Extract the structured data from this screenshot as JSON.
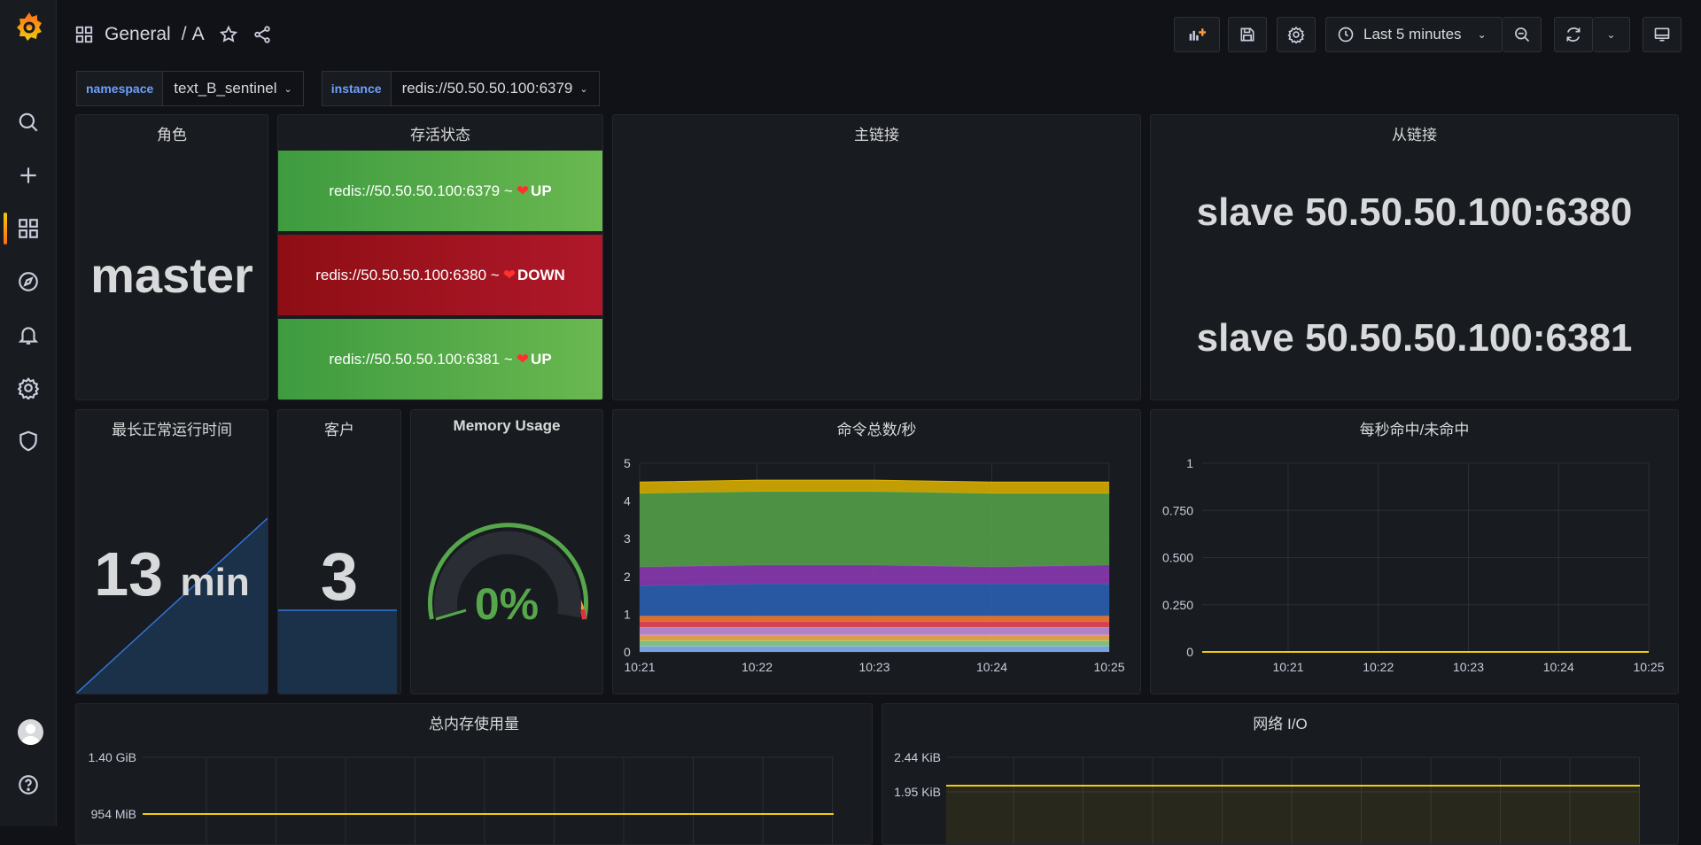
{
  "header": {
    "folder": "General",
    "separator": "/",
    "dashboard": "A",
    "time_range": "Last 5 minutes"
  },
  "variables": [
    {
      "label": "namespace",
      "value": "text_B_sentinel"
    },
    {
      "label": "instance",
      "value": "redis://50.50.50.100:6379"
    }
  ],
  "panels": {
    "role": {
      "title": "角色",
      "value": "master"
    },
    "alive": {
      "title": "存活状态",
      "items": [
        {
          "addr": "redis://50.50.50.100:6379 ~",
          "status": "UP",
          "state": "up"
        },
        {
          "addr": "redis://50.50.50.100:6380 ~",
          "status": "DOWN",
          "state": "down"
        },
        {
          "addr": "redis://50.50.50.100:6381 ~",
          "status": "UP",
          "state": "up"
        }
      ]
    },
    "master_links": {
      "title": "主链接"
    },
    "slave_links": {
      "title": "从链接",
      "items": [
        "slave 50.50.50.100:6380",
        "slave 50.50.50.100:6381"
      ]
    },
    "uptime": {
      "title": "最长正常运行时间",
      "value": "13",
      "unit": "min"
    },
    "clients": {
      "title": "客户",
      "value": "3"
    },
    "memory": {
      "title": "Memory Usage",
      "value": "0%",
      "percent": 0
    },
    "commands": {
      "title": "命令总数/秒",
      "yticks": [
        "5",
        "4",
        "3",
        "2",
        "1",
        "0"
      ],
      "xticks": [
        "10:21",
        "10:22",
        "10:23",
        "10:24",
        "10:25"
      ]
    },
    "hits": {
      "title": "每秒命中/未命中",
      "yticks": [
        "1",
        "0.750",
        "0.500",
        "0.250",
        "0"
      ],
      "xticks": [
        "10:21",
        "10:22",
        "10:23",
        "10:24",
        "10:25"
      ]
    },
    "total_memory": {
      "title": "总内存使用量",
      "yticks": [
        "1.40 GiB",
        "954 MiB"
      ]
    },
    "network": {
      "title": "网络 I/O",
      "yticks": [
        "2.44 KiB",
        "1.95 KiB"
      ]
    }
  },
  "chart_data": [
    {
      "type": "area",
      "title": "命令总数/秒",
      "x": [
        "10:21",
        "10:22",
        "10:23",
        "10:24",
        "10:25"
      ],
      "ylim": [
        0,
        5
      ],
      "stacked": true,
      "series": [
        {
          "color": "#8ab8ff",
          "values": [
            0.15,
            0.15,
            0.15,
            0.15,
            0.15
          ]
        },
        {
          "color": "#96d98d",
          "values": [
            0.15,
            0.15,
            0.15,
            0.15,
            0.15
          ]
        },
        {
          "color": "#ffb357",
          "values": [
            0.15,
            0.15,
            0.15,
            0.15,
            0.15
          ]
        },
        {
          "color": "#ca95e5",
          "values": [
            0.2,
            0.2,
            0.2,
            0.2,
            0.2
          ]
        },
        {
          "color": "#f2495c",
          "values": [
            0.15,
            0.15,
            0.15,
            0.15,
            0.15
          ]
        },
        {
          "color": "#ff7f30",
          "values": [
            0.15,
            0.15,
            0.15,
            0.15,
            0.15
          ]
        },
        {
          "color": "#2a63b8",
          "values": [
            0.8,
            0.85,
            0.85,
            0.85,
            0.85
          ]
        },
        {
          "color": "#8f3bb8",
          "values": [
            0.5,
            0.5,
            0.5,
            0.45,
            0.5
          ]
        },
        {
          "color": "#56a64b",
          "values": [
            1.95,
            1.95,
            1.95,
            1.95,
            1.9
          ]
        },
        {
          "color": "#e0b400",
          "values": [
            0.3,
            0.3,
            0.3,
            0.3,
            0.3
          ]
        }
      ]
    },
    {
      "type": "line",
      "title": "每秒命中/未命中",
      "x": [
        "10:21",
        "10:22",
        "10:23",
        "10:24",
        "10:25"
      ],
      "ylim": [
        0,
        1
      ],
      "series": [
        {
          "color": "#f2cc0c",
          "values": [
            0,
            0,
            0,
            0,
            0
          ]
        }
      ]
    }
  ]
}
